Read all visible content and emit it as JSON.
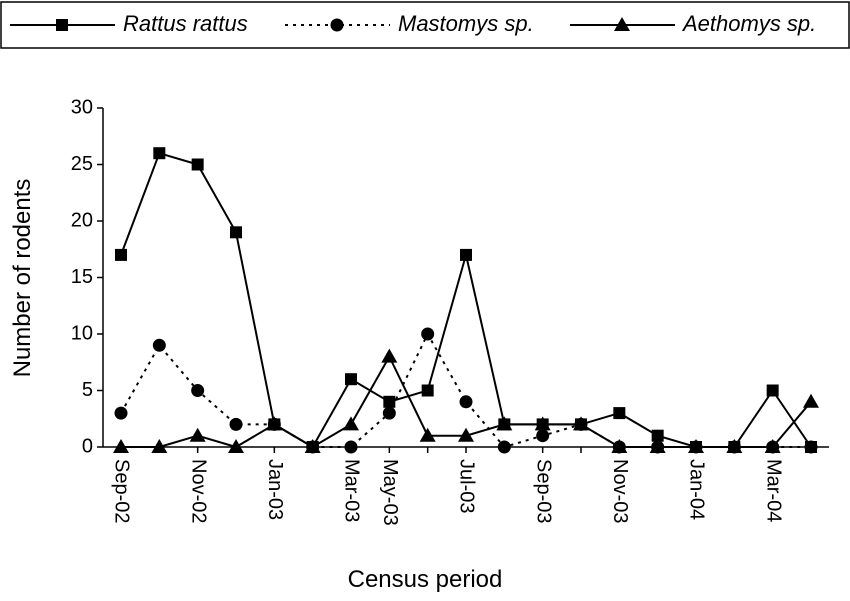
{
  "chart_data": {
    "type": "line",
    "x_label": "Census period",
    "y_label": "Number of rodents",
    "categories": [
      "Sep-02",
      null,
      "Nov-02",
      null,
      "Jan-03",
      null,
      "Mar-03",
      "May-03",
      null,
      "Jul-03",
      null,
      "Sep-03",
      null,
      "Nov-03",
      null,
      "Jan-04",
      null,
      "Mar-04",
      null
    ],
    "series": [
      {
        "name": "Rattus rattus",
        "color": "#000000",
        "marker": "square",
        "dash": "solid",
        "values": [
          17,
          26,
          25,
          19,
          2,
          0,
          6,
          4,
          5,
          17,
          2,
          2,
          2,
          3,
          1,
          0,
          0,
          5,
          0
        ]
      },
      {
        "name": "Mastomys sp.",
        "color": "#000000",
        "marker": "circle",
        "dash": "dotted",
        "values": [
          3,
          9,
          5,
          2,
          2,
          0,
          0,
          3,
          10,
          4,
          0,
          1,
          2,
          0,
          0,
          0,
          0,
          0,
          0
        ]
      },
      {
        "name": "Aethomys sp.",
        "color": "#000000",
        "marker": "triangle",
        "dash": "solid",
        "values": [
          0,
          0,
          1,
          0,
          2,
          0,
          2,
          8,
          1,
          1,
          2,
          2,
          2,
          0,
          0,
          0,
          0,
          0,
          4
        ]
      }
    ],
    "ylim": [
      0,
      30
    ],
    "yticks": [
      0,
      5,
      10,
      15,
      20,
      25,
      30
    ],
    "grid": false,
    "legend": "top"
  }
}
